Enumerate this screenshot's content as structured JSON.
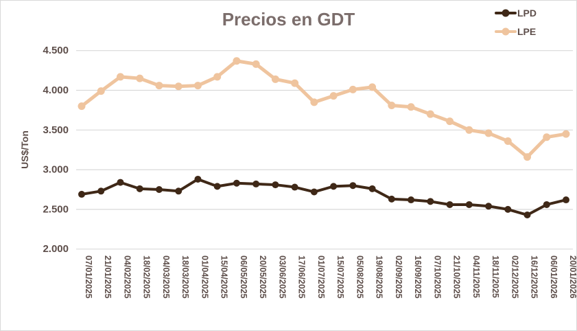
{
  "chart_data": {
    "type": "line",
    "title": "Precios en GDT",
    "ylabel": "US$/Ton",
    "xlabel": "",
    "categories": [
      "07/01/2025",
      "21/01/2025",
      "04/02/2025",
      "18/02/2025",
      "04/03/2025",
      "18/03/2025",
      "01/04/2025",
      "15/04/2025",
      "06/05/2025",
      "20/05/2025",
      "03/06/2025",
      "17/06/2025",
      "01/07/2025",
      "15/07/2025",
      "05/08/2025",
      "19/08/2025",
      "02/09/2025",
      "16/09/2025",
      "07/10/2025",
      "21/10/2025",
      "04/11/2025",
      "18/11/2025",
      "02/12/2025",
      "16/12/2025",
      "06/01/2026",
      "20/01/2026"
    ],
    "series": [
      {
        "name": "LPD",
        "values": [
          2690,
          2730,
          2840,
          2760,
          2750,
          2730,
          2880,
          2790,
          2830,
          2820,
          2810,
          2780,
          2720,
          2790,
          2800,
          2760,
          2630,
          2620,
          2600,
          2560,
          2560,
          2540,
          2500,
          2430,
          2560,
          2620
        ]
      },
      {
        "name": "LPE",
        "values": [
          3800,
          3990,
          4170,
          4150,
          4060,
          4050,
          4060,
          4170,
          4370,
          4330,
          4140,
          4090,
          3850,
          3930,
          4010,
          4040,
          3810,
          3790,
          3700,
          3610,
          3500,
          3460,
          3360,
          3160,
          3410,
          3450
        ]
      }
    ],
    "ylim": [
      2000,
      4500
    ],
    "y_ticks": [
      4500,
      4000,
      3500,
      3000,
      2500,
      2000
    ],
    "y_tick_labels": [
      "4.500",
      "4.000",
      "3.500",
      "3.000",
      "2.500",
      "2.000"
    ],
    "grid": "horizontal",
    "legend_position": "top-right",
    "x_tick_rotation_deg": 90
  },
  "colors": {
    "lpd": "#3f2817",
    "lpe": "#efc49e",
    "title": "#7b6d6b",
    "tick": "#5d4e4a",
    "grid": "#d9d9d9",
    "background": "#ffffff",
    "frame_border": "#d9d9d9"
  },
  "legend": {
    "items": [
      {
        "label": "LPD",
        "color_key": "lpd"
      },
      {
        "label": "LPE",
        "color_key": "lpe"
      }
    ]
  }
}
